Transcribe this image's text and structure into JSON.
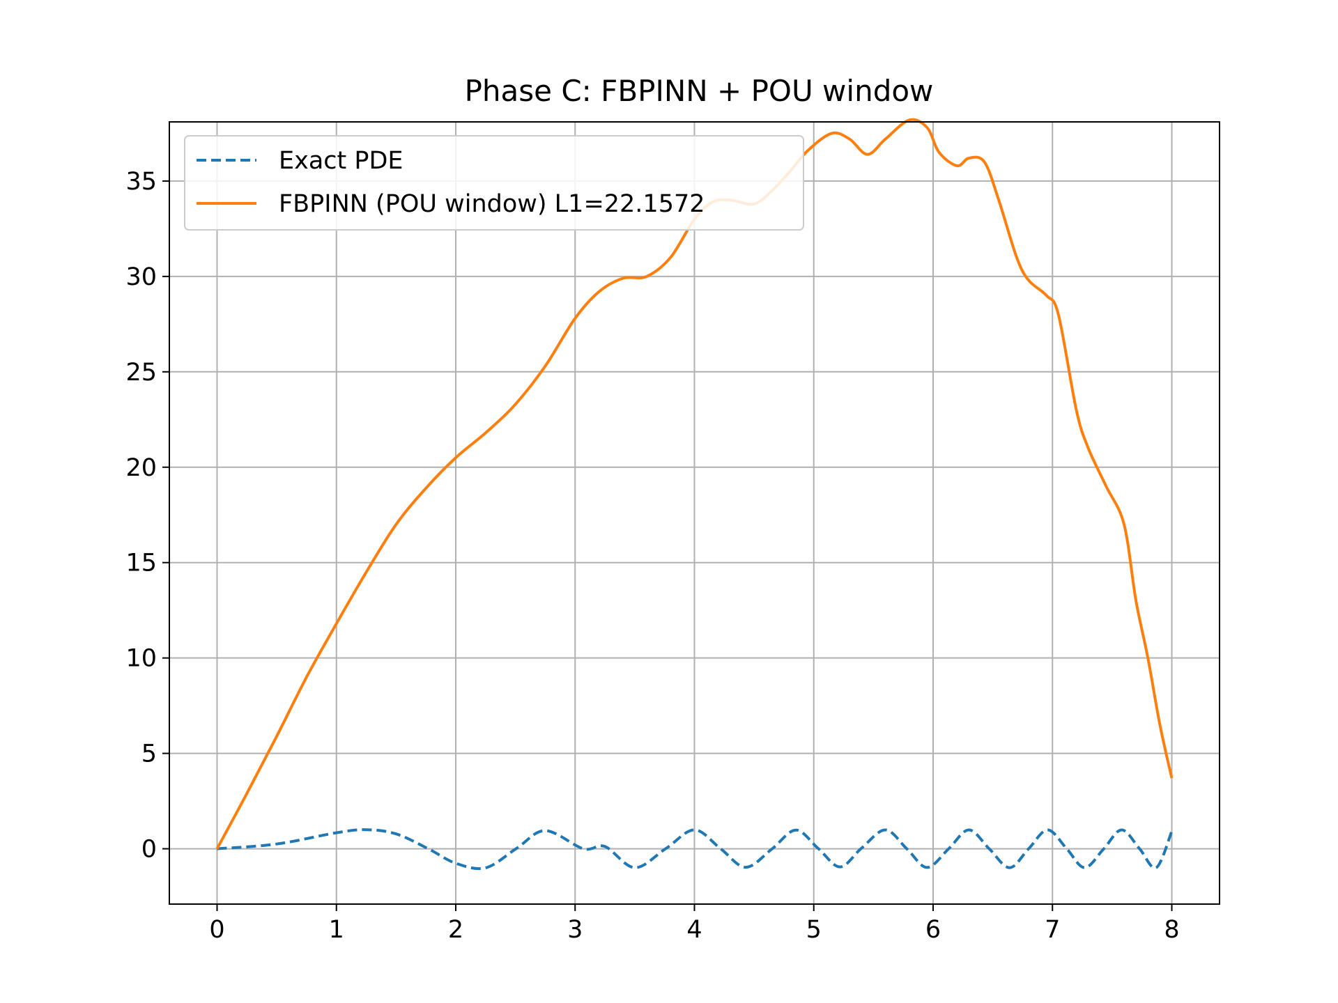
{
  "chart_data": {
    "type": "line",
    "title": "Phase C: FBPINN + POU window",
    "xlabel": "",
    "ylabel": "",
    "xlim": [
      -0.4,
      8.4
    ],
    "ylim": [
      -2.9,
      38.1
    ],
    "xticks": [
      0,
      1,
      2,
      3,
      4,
      5,
      6,
      7,
      8
    ],
    "yticks": [
      0,
      5,
      10,
      15,
      20,
      25,
      30,
      35
    ],
    "grid": true,
    "legend_position": "upper-left",
    "series": [
      {
        "name": "Exact PDE",
        "style": "dashed",
        "color": "#1f77b4",
        "function": "sin(x^2)",
        "x": [
          0,
          0.5,
          1,
          1.25,
          1.5,
          1.77,
          2,
          2.25,
          2.51,
          2.75,
          3.07,
          3.25,
          3.5,
          3.76,
          4,
          4.22,
          4.43,
          4.65,
          4.85,
          5.04,
          5.22,
          5.4,
          5.6,
          5.78,
          5.95,
          6.13,
          6.3,
          6.47,
          6.64,
          6.8,
          6.96,
          7.12,
          7.27,
          7.43,
          7.58,
          7.73,
          7.87,
          8
        ],
        "y": [
          0,
          0.25,
          0.84,
          1.0,
          0.78,
          0.0,
          -0.76,
          -1.0,
          0.02,
          0.95,
          0.0,
          0.12,
          -0.99,
          0.01,
          0.99,
          -0.0,
          -0.97,
          -0.01,
          0.98,
          -0.0,
          -0.95,
          0.03,
          0.99,
          0.0,
          -0.98,
          0.0,
          0.99,
          0.0,
          -0.99,
          0.0,
          0.99,
          0.0,
          -0.99,
          0.0,
          0.99,
          0.0,
          -0.99,
          0.92
        ]
      },
      {
        "name": "FBPINN (POU window) L1=22.1572",
        "style": "solid",
        "color": "#ff7f0e",
        "x": [
          0,
          0.25,
          0.5,
          0.75,
          1,
          1.25,
          1.5,
          1.75,
          2,
          2.25,
          2.5,
          2.75,
          3,
          3.2,
          3.4,
          3.6,
          3.8,
          4,
          4.15,
          4.3,
          4.5,
          4.65,
          4.8,
          4.95,
          5.15,
          5.3,
          5.45,
          5.6,
          5.8,
          5.95,
          6.05,
          6.2,
          6.3,
          6.43,
          6.55,
          6.7,
          6.8,
          6.95,
          7.05,
          7.2,
          7.3,
          7.45,
          7.6,
          7.7,
          7.8,
          7.9,
          8
        ],
        "y": [
          0,
          2.9,
          5.9,
          9.0,
          11.8,
          14.5,
          17.0,
          18.9,
          20.5,
          21.8,
          23.3,
          25.3,
          27.8,
          29.2,
          29.9,
          30.0,
          31.0,
          33.0,
          33.9,
          34.0,
          33.8,
          34.5,
          35.5,
          36.6,
          37.5,
          37.2,
          36.4,
          37.2,
          38.2,
          37.8,
          36.5,
          35.8,
          36.2,
          36.0,
          34.0,
          31.0,
          29.8,
          29.0,
          28.0,
          23.0,
          21.0,
          19.0,
          17.0,
          13.0,
          10.0,
          6.5,
          3.7
        ]
      }
    ]
  }
}
